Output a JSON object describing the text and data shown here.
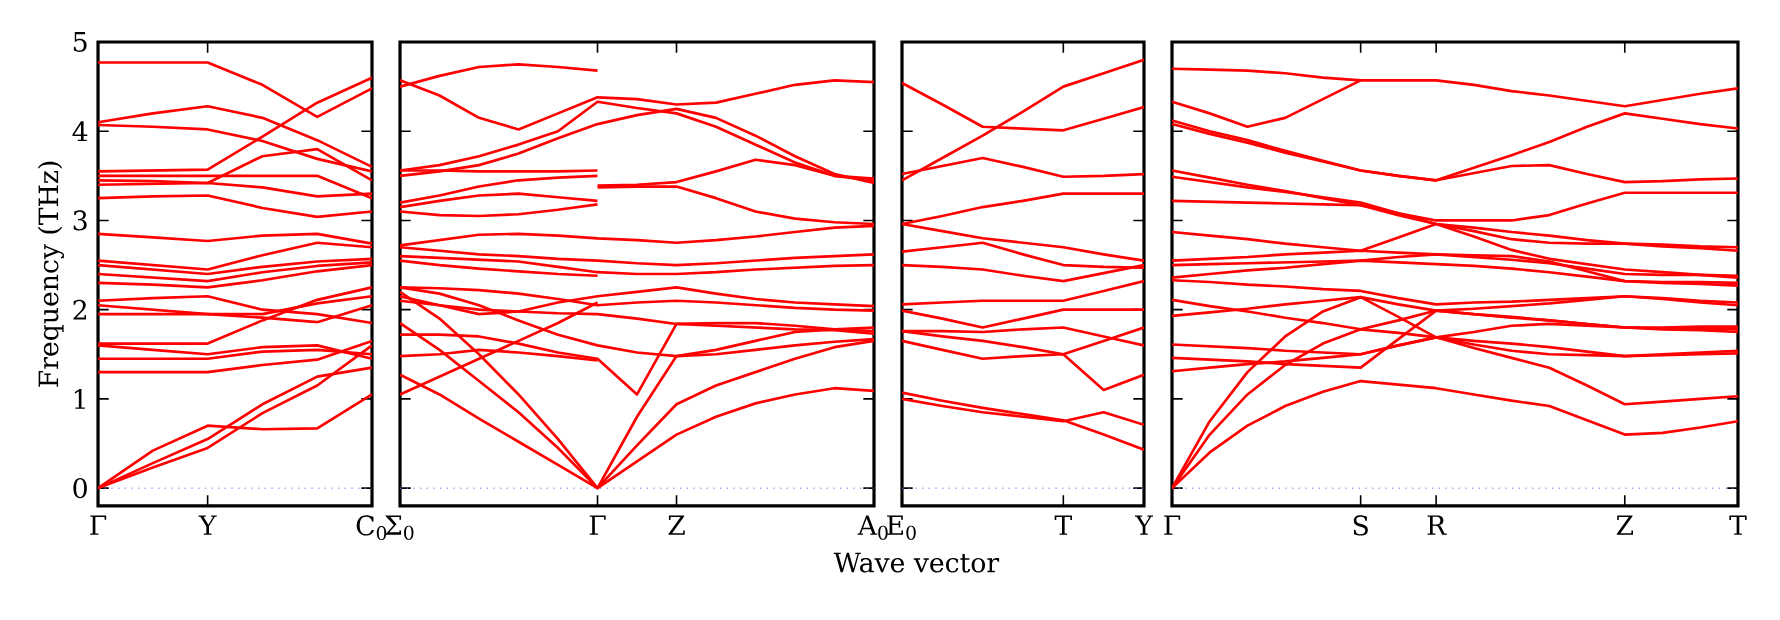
{
  "chart_data": [
    {
      "type": "line",
      "ylabel": "Frequency (THz)",
      "categories": [
        "Γ",
        null,
        "Y",
        null,
        null,
        "C$_{0}$"
      ],
      "ylim": [
        -0.2,
        5
      ],
      "yticks": [
        0,
        1,
        2,
        3,
        4,
        5
      ],
      "ref_lines": [
        {
          "axis": "y",
          "value": 0,
          "color": "#8080ff",
          "line_style": "dotted"
        }
      ],
      "series": [
        {
          "color": "#ff0000",
          "values": [
            4.77,
            4.77,
            4.77,
            4.52,
            4.16,
            4.48
          ]
        },
        {
          "color": "#ff0000",
          "values": [
            4.1,
            4.2,
            4.28,
            4.15,
            3.9,
            3.6
          ]
        },
        {
          "color": "#ff0000",
          "values": [
            4.07,
            4.05,
            4.02,
            3.89,
            3.69,
            3.55
          ]
        },
        {
          "color": "#ff0000",
          "values": [
            3.55,
            3.56,
            3.57,
            3.94,
            4.32,
            4.6
          ]
        },
        {
          "color": "#ff0000",
          "values": [
            3.5,
            3.5,
            3.5,
            3.5,
            3.5,
            3.25
          ]
        },
        {
          "color": "#ff0000",
          "values": [
            3.45,
            3.44,
            3.42,
            3.72,
            3.8,
            3.45
          ]
        },
        {
          "color": "#ff0000",
          "values": [
            3.4,
            3.41,
            3.42,
            3.37,
            3.27,
            3.3
          ]
        },
        {
          "color": "#ff0000",
          "values": [
            3.25,
            3.27,
            3.28,
            3.14,
            3.04,
            3.1
          ]
        },
        {
          "color": "#ff0000",
          "values": [
            2.85,
            2.81,
            2.77,
            2.83,
            2.85,
            2.74
          ]
        },
        {
          "color": "#ff0000",
          "values": [
            2.55,
            2.5,
            2.45,
            2.61,
            2.75,
            2.7
          ]
        },
        {
          "color": "#ff0000",
          "values": [
            2.5,
            2.45,
            2.4,
            2.48,
            2.54,
            2.57
          ]
        },
        {
          "color": "#ff0000",
          "values": [
            2.4,
            2.36,
            2.32,
            2.42,
            2.49,
            2.53
          ]
        },
        {
          "color": "#ff0000",
          "values": [
            2.3,
            2.28,
            2.25,
            2.33,
            2.43,
            2.5
          ]
        },
        {
          "color": "#ff0000",
          "values": [
            2.1,
            2.13,
            2.15,
            2.0,
            1.95,
            1.85
          ]
        },
        {
          "color": "#ff0000",
          "values": [
            2.05,
            2.0,
            1.95,
            1.95,
            2.07,
            2.15
          ]
        },
        {
          "color": "#ff0000",
          "values": [
            1.95,
            1.95,
            1.95,
            1.91,
            1.86,
            2.05
          ]
        },
        {
          "color": "#ff0000",
          "values": [
            1.62,
            1.62,
            1.62,
            1.88,
            2.11,
            2.25
          ]
        },
        {
          "color": "#ff0000",
          "values": [
            1.6,
            1.55,
            1.5,
            1.58,
            1.6,
            1.45
          ]
        },
        {
          "color": "#ff0000",
          "values": [
            1.45,
            1.45,
            1.45,
            1.53,
            1.55,
            1.5
          ]
        },
        {
          "color": "#ff0000",
          "values": [
            1.3,
            1.3,
            1.3,
            1.38,
            1.44,
            1.65
          ]
        },
        {
          "color": "#ff0000",
          "values": [
            0,
            0.42,
            0.7,
            0.66,
            0.67,
            1.05
          ]
        },
        {
          "color": "#ff0000",
          "values": [
            0,
            0.28,
            0.55,
            0.94,
            1.25,
            1.35
          ]
        },
        {
          "color": "#ff0000",
          "values": [
            0,
            0.23,
            0.45,
            0.84,
            1.15,
            1.6
          ]
        }
      ]
    },
    {
      "type": "line",
      "tick_labels": "x",
      "categories": [
        "Σ$_{0}$",
        null,
        null,
        null,
        null,
        "Γ",
        null,
        "Z",
        null,
        null,
        null,
        null,
        "A$_{0}$"
      ],
      "ylim": [
        -0.2,
        5
      ],
      "yticks": [
        0,
        1,
        2,
        3,
        4,
        5
      ],
      "ref_lines": [
        {
          "axis": "y",
          "value": 0,
          "color": "#8080ff",
          "line_style": "dotted"
        }
      ],
      "series": [
        {
          "color": "#ff0000",
          "values": [
            4.5,
            4.62,
            4.72,
            4.75,
            4.72,
            4.68,
            null,
            null,
            null,
            null,
            null,
            null,
            null
          ]
        },
        {
          "color": "#ff0000",
          "values": [
            4.57,
            4.4,
            4.15,
            4.02,
            4.2,
            4.38,
            4.36,
            4.3,
            4.32,
            4.42,
            4.52,
            4.57,
            4.55
          ]
        },
        {
          "color": "#ff0000",
          "values": [
            3.56,
            3.62,
            3.72,
            3.85,
            4.0,
            4.33,
            4.26,
            4.2,
            4.05,
            3.85,
            3.65,
            3.5,
            3.45
          ]
        },
        {
          "color": "#ff0000",
          "values": [
            3.5,
            3.55,
            3.62,
            3.75,
            3.92,
            4.08,
            4.18,
            4.25,
            4.15,
            3.95,
            3.72,
            3.52,
            3.42
          ]
        },
        {
          "color": "#ff0000",
          "values": [
            3.56,
            3.56,
            3.55,
            3.55,
            3.55,
            3.56,
            null,
            null,
            null,
            null,
            null,
            null,
            null
          ]
        },
        {
          "color": "#ff0000",
          "values": [
            3.2,
            3.28,
            3.38,
            3.45,
            3.48,
            3.5,
            null,
            null,
            null,
            null,
            null,
            null,
            null
          ]
        },
        {
          "color": "#ff0000",
          "values": [
            3.15,
            3.22,
            3.28,
            3.3,
            3.26,
            3.22,
            null,
            null,
            null,
            null,
            null,
            null,
            null
          ]
        },
        {
          "color": "#ff0000",
          "values": [
            3.1,
            3.06,
            3.05,
            3.07,
            3.12,
            3.18,
            null,
            null,
            null,
            null,
            null,
            null,
            null
          ]
        },
        {
          "color": "#ff0000",
          "values": [
            null,
            null,
            null,
            null,
            null,
            3.39,
            3.4,
            3.43,
            3.55,
            3.68,
            3.62,
            3.5,
            3.47
          ]
        },
        {
          "color": "#ff0000",
          "values": [
            null,
            null,
            null,
            null,
            null,
            3.37,
            3.38,
            3.38,
            3.25,
            3.1,
            3.02,
            2.98,
            2.96
          ]
        },
        {
          "color": "#ff0000",
          "values": [
            2.72,
            2.78,
            2.84,
            2.85,
            2.83,
            2.8,
            2.78,
            2.75,
            2.78,
            2.82,
            2.87,
            2.92,
            2.94
          ]
        },
        {
          "color": "#ff0000",
          "values": [
            2.7,
            2.66,
            2.62,
            2.6,
            2.57,
            2.55,
            2.52,
            2.5,
            2.52,
            2.55,
            2.58,
            2.6,
            2.62
          ]
        },
        {
          "color": "#ff0000",
          "values": [
            2.6,
            2.58,
            2.56,
            2.54,
            2.48,
            2.42,
            2.4,
            2.4,
            2.42,
            2.45,
            2.47,
            2.49,
            2.5
          ]
        },
        {
          "color": "#ff0000",
          "values": [
            2.55,
            2.5,
            2.46,
            2.43,
            2.4,
            2.38,
            null,
            null,
            null,
            null,
            null,
            null,
            null
          ]
        },
        {
          "color": "#ff0000",
          "values": [
            2.25,
            2.24,
            2.22,
            2.18,
            2.12,
            2.05,
            2.08,
            2.1,
            2.08,
            2.05,
            2.02,
            2.0,
            1.99
          ]
        },
        {
          "color": "#ff0000",
          "values": [
            2.25,
            2.18,
            2.05,
            1.88,
            1.72,
            1.6,
            1.52,
            1.48,
            1.5,
            1.55,
            1.6,
            1.64,
            1.67
          ]
        },
        {
          "color": "#ff0000",
          "values": [
            2.15,
            2.05,
            1.95,
            1.98,
            2.08,
            2.15,
            2.2,
            2.25,
            2.18,
            2.12,
            2.08,
            2.06,
            2.04
          ]
        },
        {
          "color": "#ff0000",
          "values": [
            2.1,
            2.05,
            2.0,
            1.98,
            1.96,
            1.95,
            1.9,
            1.84,
            1.82,
            1.8,
            1.78,
            1.77,
            1.73
          ]
        },
        {
          "color": "#ff0000",
          "values": [
            1.72,
            1.72,
            1.7,
            1.62,
            1.52,
            1.45,
            1.05,
            1.84,
            1.85,
            1.85,
            1.82,
            1.78,
            1.76
          ]
        },
        {
          "color": "#ff0000",
          "values": [
            1.48,
            1.5,
            1.55,
            1.52,
            1.48,
            1.43,
            null,
            null,
            null,
            null,
            null,
            null,
            null
          ]
        },
        {
          "color": "#ff0000",
          "values": [
            1.05,
            1.25,
            1.45,
            1.65,
            1.85,
            2.08,
            null,
            null,
            null,
            null,
            null,
            null,
            null
          ]
        },
        {
          "color": "#ff0000",
          "values": [
            1.27,
            1.05,
            0.78,
            0.52,
            0.26,
            0,
            0.3,
            0.6,
            0.8,
            0.95,
            1.05,
            1.12,
            1.09
          ]
        },
        {
          "color": "#ff0000",
          "values": [
            1.85,
            1.55,
            1.2,
            0.85,
            0.45,
            0,
            0.48,
            0.94,
            1.15,
            1.3,
            1.45,
            1.58,
            1.65
          ]
        },
        {
          "color": "#ff0000",
          "values": [
            2.2,
            1.9,
            1.5,
            1.05,
            0.55,
            0,
            0.8,
            1.48,
            1.55,
            1.65,
            1.75,
            1.78,
            1.8
          ]
        }
      ]
    },
    {
      "type": "line",
      "tick_labels": "x",
      "xlabel": "Wave vector",
      "categories": [
        "E$_{0}$",
        null,
        null,
        null,
        "T",
        null,
        "Y"
      ],
      "ylim": [
        -0.2,
        5
      ],
      "yticks": [
        0,
        1,
        2,
        3,
        4,
        5
      ],
      "ref_lines": [
        {
          "axis": "y",
          "value": 0,
          "color": "#8080ff",
          "line_style": "dotted"
        }
      ],
      "series": [
        {
          "color": "#ff0000",
          "values": [
            4.54,
            4.3,
            4.05,
            4.03,
            4.01,
            4.14,
            4.27
          ]
        },
        {
          "color": "#ff0000",
          "values": [
            3.45,
            3.7,
            3.95,
            4.22,
            4.5,
            4.65,
            4.8
          ]
        },
        {
          "color": "#ff0000",
          "values": [
            3.52,
            3.61,
            3.7,
            3.6,
            3.49,
            3.5,
            3.52
          ]
        },
        {
          "color": "#ff0000",
          "values": [
            2.96,
            3.05,
            3.15,
            3.22,
            3.3,
            3.3,
            3.3
          ]
        },
        {
          "color": "#ff0000",
          "values": [
            2.96,
            2.88,
            2.8,
            2.75,
            2.7,
            2.62,
            2.55
          ]
        },
        {
          "color": "#ff0000",
          "values": [
            2.65,
            2.7,
            2.75,
            2.62,
            2.5,
            2.48,
            2.47
          ]
        },
        {
          "color": "#ff0000",
          "values": [
            2.5,
            2.48,
            2.45,
            2.38,
            2.32,
            2.41,
            2.5
          ]
        },
        {
          "color": "#ff0000",
          "values": [
            2.06,
            2.08,
            2.1,
            2.1,
            2.1,
            2.21,
            2.32
          ]
        },
        {
          "color": "#ff0000",
          "values": [
            1.99,
            1.9,
            1.8,
            1.9,
            2.0,
            2.0,
            2.0
          ]
        },
        {
          "color": "#ff0000",
          "values": [
            1.76,
            1.76,
            1.75,
            1.78,
            1.8,
            1.7,
            1.6
          ]
        },
        {
          "color": "#ff0000",
          "values": [
            1.65,
            1.55,
            1.45,
            1.48,
            1.5,
            1.1,
            1.27
          ]
        },
        {
          "color": "#ff0000",
          "values": [
            1.76,
            1.7,
            1.65,
            1.58,
            1.5,
            1.65,
            1.8
          ]
        },
        {
          "color": "#ff0000",
          "values": [
            1.07,
            0.98,
            0.9,
            0.83,
            0.76,
            0.6,
            0.43
          ]
        },
        {
          "color": "#ff0000",
          "values": [
            1.0,
            0.92,
            0.85,
            0.8,
            0.75,
            0.85,
            0.71
          ]
        }
      ]
    },
    {
      "type": "line",
      "tick_labels": "x",
      "categories": [
        "Γ",
        null,
        null,
        null,
        null,
        "S",
        null,
        "R",
        null,
        null,
        null,
        null,
        "Z",
        null,
        null,
        "T"
      ],
      "ylim": [
        -0.2,
        5
      ],
      "yticks": [
        0,
        1,
        2,
        3,
        4,
        5
      ],
      "ref_lines": [
        {
          "axis": "y",
          "value": 0,
          "color": "#8080ff",
          "line_style": "dotted"
        }
      ],
      "series": [
        {
          "color": "#ff0000",
          "values": [
            4.7,
            4.69,
            4.68,
            4.65,
            4.6,
            4.57,
            4.57,
            4.57,
            4.52,
            4.45,
            4.4,
            4.34,
            4.28,
            4.35,
            4.42,
            4.48
          ]
        },
        {
          "color": "#ff0000",
          "values": [
            4.33,
            4.2,
            4.05,
            4.15,
            4.36,
            4.57,
            null,
            null,
            null,
            null,
            null,
            null,
            null,
            null,
            null,
            null
          ]
        },
        {
          "color": "#ff0000",
          "values": [
            4.12,
            4.0,
            3.9,
            3.78,
            3.67,
            3.56,
            3.5,
            3.45,
            3.59,
            3.73,
            3.88,
            4.05,
            4.2,
            4.14,
            4.08,
            4.03
          ]
        },
        {
          "color": "#ff0000",
          "values": [
            4.08,
            3.97,
            3.87,
            3.76,
            3.66,
            3.56,
            3.5,
            3.45,
            3.53,
            3.61,
            3.62,
            3.52,
            3.43,
            3.44,
            3.46,
            3.47
          ]
        },
        {
          "color": "#ff0000",
          "values": [
            3.56,
            3.48,
            3.4,
            3.33,
            3.25,
            3.17,
            3.08,
            3.0,
            3.0,
            3.0,
            3.06,
            3.19,
            3.31,
            3.31,
            3.31,
            3.31
          ]
        },
        {
          "color": "#ff0000",
          "values": [
            3.49,
            3.43,
            3.37,
            3.32,
            3.26,
            3.2,
            3.08,
            2.96,
            2.92,
            2.87,
            2.83,
            2.78,
            2.74,
            2.73,
            2.71,
            2.7
          ]
        },
        {
          "color": "#ff0000",
          "values": [
            3.22,
            3.21,
            3.2,
            3.19,
            3.18,
            3.17,
            3.06,
            2.96,
            2.88,
            2.79,
            2.75,
            2.74,
            2.74,
            2.71,
            2.69,
            2.66
          ]
        },
        {
          "color": "#ff0000",
          "values": [
            2.87,
            2.83,
            2.79,
            2.74,
            2.7,
            2.66,
            2.81,
            2.96,
            2.82,
            2.67,
            2.57,
            2.51,
            2.45,
            2.42,
            2.39,
            2.36
          ]
        },
        {
          "color": "#ff0000",
          "values": [
            2.55,
            2.57,
            2.59,
            2.62,
            2.64,
            2.66,
            2.64,
            2.62,
            2.59,
            2.56,
            2.52,
            2.46,
            2.4,
            2.39,
            2.39,
            2.38
          ]
        },
        {
          "color": "#ff0000",
          "values": [
            2.5,
            2.51,
            2.52,
            2.53,
            2.54,
            2.55,
            2.59,
            2.62,
            2.61,
            2.6,
            2.54,
            2.43,
            2.32,
            2.31,
            2.31,
            2.3
          ]
        },
        {
          "color": "#ff0000",
          "values": [
            2.36,
            2.4,
            2.44,
            2.47,
            2.51,
            2.55,
            2.53,
            2.51,
            2.49,
            2.46,
            2.42,
            2.37,
            2.32,
            2.3,
            2.29,
            2.27
          ]
        },
        {
          "color": "#ff0000",
          "values": [
            2.33,
            2.31,
            2.28,
            2.26,
            2.23,
            2.21,
            2.13,
            2.06,
            2.08,
            2.09,
            2.11,
            2.13,
            2.15,
            2.13,
            2.1,
            2.08
          ]
        },
        {
          "color": "#ff0000",
          "values": [
            2.11,
            2.04,
            1.98,
            1.91,
            1.85,
            1.78,
            1.88,
            1.99,
            2.01,
            2.04,
            2.07,
            2.11,
            2.15,
            2.12,
            2.08,
            2.05
          ]
        },
        {
          "color": "#ff0000",
          "values": [
            1.93,
            1.97,
            2.01,
            2.06,
            2.1,
            2.14,
            1.92,
            1.69,
            1.75,
            1.82,
            1.84,
            1.82,
            1.8,
            1.79,
            1.79,
            1.78
          ]
        },
        {
          "color": "#ff0000",
          "values": [
            1.61,
            1.59,
            1.57,
            1.54,
            1.52,
            1.5,
            1.6,
            1.69,
            1.65,
            1.62,
            1.58,
            1.53,
            1.48,
            1.49,
            1.5,
            1.51
          ]
        },
        {
          "color": "#ff0000",
          "values": [
            1.46,
            1.44,
            1.42,
            1.39,
            1.37,
            1.35,
            1.67,
            1.99,
            1.95,
            1.91,
            1.88,
            1.84,
            1.8,
            1.78,
            1.77,
            1.75
          ]
        },
        {
          "color": "#ff0000",
          "values": [
            1.31,
            1.35,
            1.39,
            1.42,
            1.46,
            1.5,
            1.6,
            1.69,
            1.61,
            1.54,
            1.5,
            1.49,
            1.48,
            1.5,
            1.52,
            1.54
          ]
        },
        {
          "color": "#ff0000",
          "values": [
            0,
            0.4,
            0.7,
            0.92,
            1.08,
            1.2,
            1.16,
            1.12,
            1.05,
            0.98,
            0.92,
            0.76,
            0.6,
            0.62,
            0.68,
            0.75
          ]
        },
        {
          "color": "#ff0000",
          "values": [
            0,
            0.6,
            1.05,
            1.38,
            1.62,
            1.78,
            1.74,
            1.69,
            1.57,
            1.46,
            1.35,
            1.15,
            0.94,
            0.97,
            1.0,
            1.03
          ]
        },
        {
          "color": "#ff0000",
          "values": [
            0,
            0.75,
            1.3,
            1.7,
            1.98,
            2.14,
            2.06,
            1.99,
            1.95,
            1.92,
            1.88,
            1.84,
            1.8,
            1.8,
            1.81,
            1.81
          ]
        }
      ]
    }
  ]
}
